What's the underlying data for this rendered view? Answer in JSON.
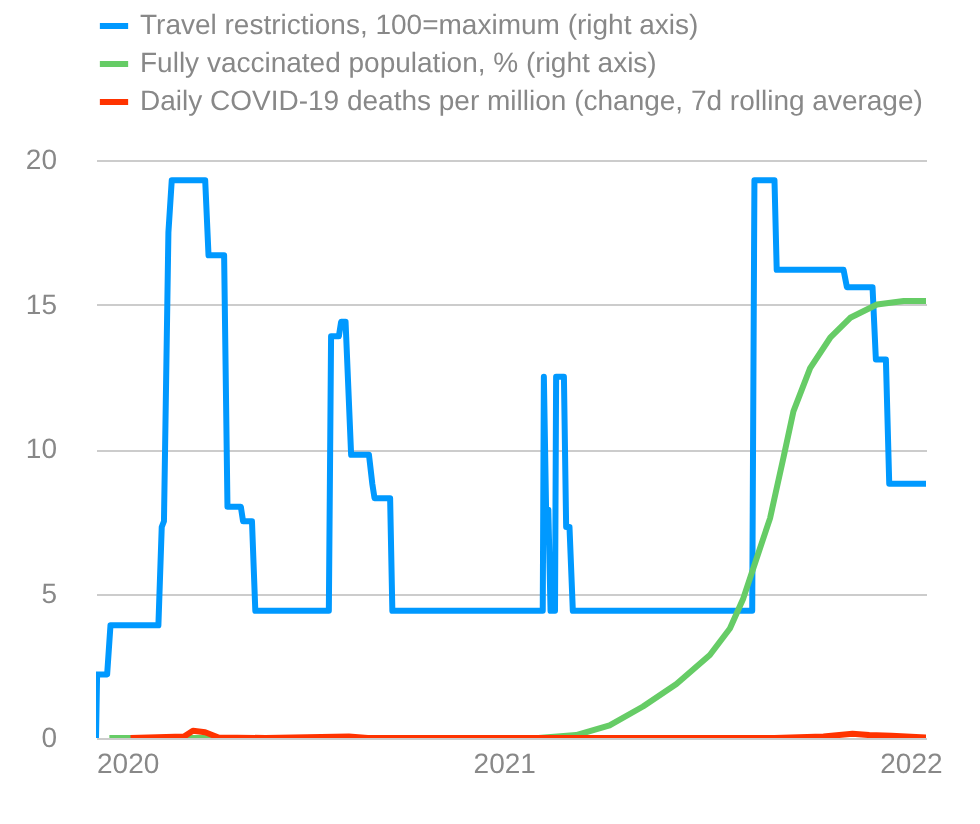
{
  "chart_data": {
    "type": "line",
    "ylim": [
      0,
      20
    ],
    "yticks": [
      0,
      5,
      10,
      15,
      20
    ],
    "xlim": [
      "2020-01-01",
      "2022-01-15"
    ],
    "xticks": [
      "2020",
      "2021",
      "2022"
    ],
    "grid": "y",
    "legend": "top left",
    "series": [
      {
        "name": "Travel restrictions, 100=maximum (right axis)",
        "color": "#0099ff",
        "x": [
          "2020-01-01",
          "2020-01-02",
          "2020-01-11",
          "2020-01-14",
          "2020-02-26",
          "2020-02-29",
          "2020-03-02",
          "2020-03-06",
          "2020-03-09",
          "2020-04-08",
          "2020-04-11",
          "2020-04-25",
          "2020-04-28",
          "2020-05-10",
          "2020-05-12",
          "2020-05-20",
          "2020-05-23",
          "2020-07-28",
          "2020-07-30",
          "2020-08-06",
          "2020-08-08",
          "2020-08-12",
          "2020-08-17",
          "2020-09-02",
          "2020-09-05",
          "2020-09-07",
          "2020-09-21",
          "2020-09-23",
          "2021-02-05",
          "2021-02-06",
          "2021-02-08",
          "2021-02-10",
          "2021-02-12",
          "2021-02-16",
          "2021-02-17",
          "2021-02-24",
          "2021-02-26",
          "2021-03-01",
          "2021-03-04",
          "2021-08-12",
          "2021-08-14",
          "2021-09-01",
          "2021-09-03",
          "2021-11-02",
          "2021-11-05",
          "2021-11-28",
          "2021-12-01",
          "2021-12-10",
          "2021-12-13",
          "2022-01-15"
        ],
        "values": [
          0,
          2.2,
          2.2,
          3.9,
          3.9,
          7.3,
          7.5,
          17.5,
          19.3,
          19.3,
          16.7,
          16.7,
          8.0,
          8.0,
          7.5,
          7.5,
          4.4,
          4.4,
          13.9,
          13.9,
          14.4,
          14.4,
          9.8,
          9.8,
          8.8,
          8.3,
          8.3,
          4.4,
          4.4,
          12.5,
          7.9,
          7.9,
          4.4,
          4.4,
          12.5,
          12.5,
          7.3,
          7.3,
          4.4,
          4.4,
          19.3,
          19.3,
          16.2,
          16.2,
          15.6,
          15.6,
          13.1,
          13.1,
          8.8,
          8.8
        ]
      },
      {
        "name": "Fully vaccinated population, % (right axis)",
        "color": "#66cc66",
        "x": [
          "2020-01-13",
          "2021-02-01",
          "2021-03-07",
          "2021-04-06",
          "2021-05-06",
          "2021-06-05",
          "2021-07-05",
          "2021-07-23",
          "2021-08-04",
          "2021-08-16",
          "2021-08-28",
          "2021-09-09",
          "2021-09-18",
          "2021-10-03",
          "2021-10-21",
          "2021-11-08",
          "2021-12-02",
          "2021-12-26",
          "2022-01-15"
        ],
        "values": [
          0,
          0,
          0.1,
          0.44,
          1.09,
          1.87,
          2.87,
          3.79,
          4.83,
          6.22,
          7.6,
          9.69,
          11.3,
          12.8,
          13.85,
          14.54,
          15.0,
          15.12,
          15.12
        ]
      },
      {
        "name": "Daily COVID-19 deaths per million (change, 7d rolling average)",
        "color": "#ff3300",
        "x": [
          "2020-02-01",
          "2020-03-20",
          "2020-03-28",
          "2020-04-08",
          "2020-04-20",
          "2020-06-01",
          "2020-08-15",
          "2020-09-01",
          "2021-09-01",
          "2021-10-15",
          "2021-11-10",
          "2021-11-25",
          "2021-12-15",
          "2022-01-15"
        ],
        "values": [
          0,
          0.05,
          0.25,
          0.2,
          0.02,
          0,
          0.05,
          0,
          0,
          0.05,
          0.15,
          0.1,
          0.08,
          0.02
        ]
      }
    ]
  }
}
